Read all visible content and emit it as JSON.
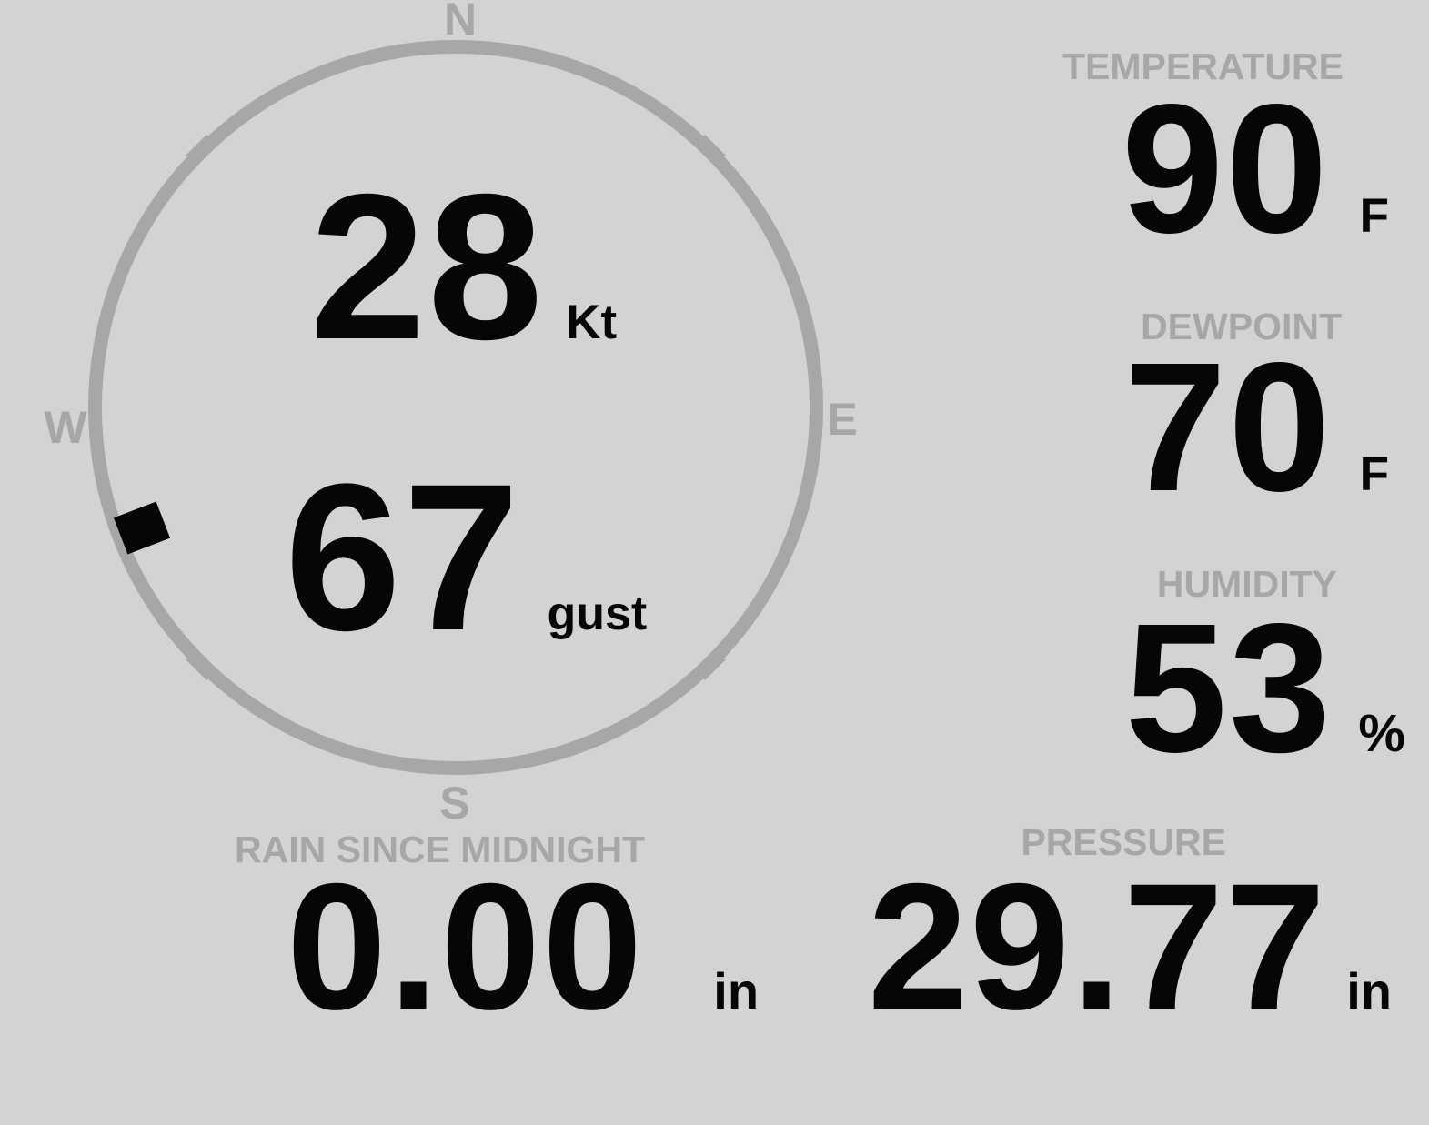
{
  "display": {
    "background": "#d3d3d3",
    "muted_color": "#a7a7a7",
    "value_color": "#060606"
  },
  "compass": {
    "cardinals": {
      "n": "N",
      "e": "E",
      "s": "S",
      "w": "W"
    },
    "wind": {
      "speed": "28",
      "speed_unit": "Kt",
      "gust": "67",
      "gust_unit": "gust",
      "direction_deg": 249
    }
  },
  "metrics": [
    {
      "id": "temperature",
      "label": "TEMPERATURE",
      "value": "90",
      "unit": "F"
    },
    {
      "id": "dewpoint",
      "label": "DEWPOINT",
      "value": "70",
      "unit": "F"
    },
    {
      "id": "humidity",
      "label": "HUMIDITY",
      "value": "53",
      "unit": "%"
    },
    {
      "id": "pressure",
      "label": "PRESSURE",
      "value": "29.77",
      "unit": "in"
    },
    {
      "id": "rain",
      "label": "RAIN SINCE MIDNIGHT",
      "value": "0.00",
      "unit": "in"
    }
  ]
}
